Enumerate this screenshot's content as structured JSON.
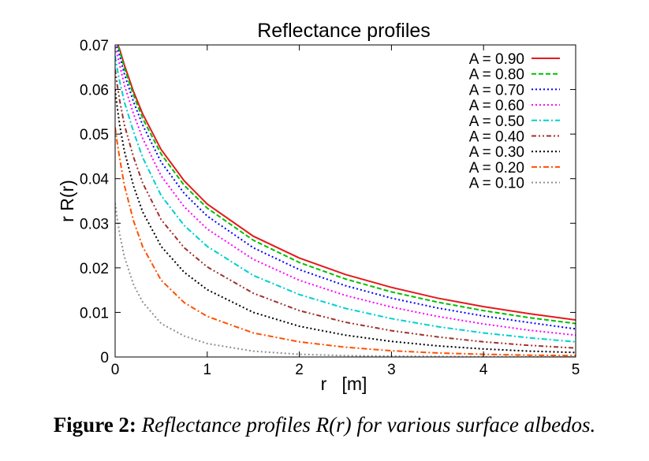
{
  "figure": {
    "caption_label": "Figure 2:",
    "caption_text": "Reflectance profiles R(r) for various surface albedos."
  },
  "chart_data": {
    "type": "line",
    "title": "Reflectance profiles",
    "xlabel": "r   [m]",
    "ylabel": "r R(r)",
    "xlim": [
      0,
      5
    ],
    "ylim": [
      0,
      0.07
    ],
    "x_ticks": [
      "0",
      "1",
      "2",
      "3",
      "4",
      "5"
    ],
    "y_ticks": [
      "0",
      "0.01",
      "0.02",
      "0.03",
      "0.04",
      "0.05",
      "0.06",
      "0.07"
    ],
    "grid": false,
    "legend_position": "top-right",
    "x": [
      0,
      0.02,
      0.05,
      0.1,
      0.2,
      0.3,
      0.5,
      0.75,
      1,
      1.5,
      2,
      2.5,
      3,
      3.5,
      4,
      4.5,
      5
    ],
    "series": [
      {
        "name": "A = 0.90",
        "color": "#e41a1c",
        "dash": "solid",
        "values": [
          0.071,
          0.0705,
          0.069,
          0.0655,
          0.0595,
          0.0545,
          0.0465,
          0.0395,
          0.0343,
          0.0271,
          0.0222,
          0.0185,
          0.0156,
          0.0132,
          0.0113,
          0.0097,
          0.0083
        ]
      },
      {
        "name": "A = 0.80",
        "color": "#00c000",
        "dash": "dash",
        "values": [
          0.071,
          0.0703,
          0.0686,
          0.0648,
          0.0587,
          0.0535,
          0.0455,
          0.0385,
          0.0334,
          0.0262,
          0.0212,
          0.0175,
          0.0146,
          0.0123,
          0.0104,
          0.0088,
          0.0075
        ]
      },
      {
        "name": "A = 0.70",
        "color": "#0000ff",
        "dash": "dot",
        "values": [
          0.0705,
          0.0695,
          0.0675,
          0.0635,
          0.0572,
          0.052,
          0.0437,
          0.0367,
          0.0316,
          0.0245,
          0.0196,
          0.016,
          0.0132,
          0.011,
          0.0092,
          0.0077,
          0.0063
        ]
      },
      {
        "name": "A = 0.60",
        "color": "#ff00ff",
        "dash": "dot",
        "values": [
          0.0695,
          0.068,
          0.0655,
          0.061,
          0.0545,
          0.049,
          0.0406,
          0.0337,
          0.0287,
          0.0219,
          0.0172,
          0.0138,
          0.0112,
          0.0091,
          0.0074,
          0.006,
          0.0049
        ]
      },
      {
        "name": "A = 0.50",
        "color": "#00d0d0",
        "dash": "dashdot",
        "values": [
          0.0675,
          0.065,
          0.0618,
          0.0572,
          0.0505,
          0.0447,
          0.0362,
          0.0295,
          0.0248,
          0.0183,
          0.014,
          0.0109,
          0.0086,
          0.0068,
          0.0054,
          0.0043,
          0.0034
        ]
      },
      {
        "name": "A = 0.40",
        "color": "#a0302c",
        "dash": "dashdotdot",
        "values": [
          0.0645,
          0.0615,
          0.0575,
          0.0521,
          0.0448,
          0.039,
          0.0308,
          0.0245,
          0.0202,
          0.0143,
          0.0104,
          0.0078,
          0.0059,
          0.0045,
          0.0034,
          0.0026,
          0.002
        ]
      },
      {
        "name": "A = 0.30",
        "color": "#000000",
        "dash": "dot",
        "values": [
          0.06,
          0.0565,
          0.052,
          0.0462,
          0.0383,
          0.0325,
          0.0248,
          0.019,
          0.0151,
          0.01,
          0.0069,
          0.0049,
          0.0035,
          0.0025,
          0.0018,
          0.0013,
          0.001
        ]
      },
      {
        "name": "A = 0.20",
        "color": "#ff5000",
        "dash": "dashdot",
        "values": [
          0.0515,
          0.0485,
          0.0445,
          0.0385,
          0.0305,
          0.0247,
          0.0172,
          0.0122,
          0.0091,
          0.0054,
          0.0034,
          0.0022,
          0.0014,
          0.0009,
          0.0006,
          0.0004,
          0.0003
        ]
      },
      {
        "name": "A = 0.10",
        "color": "#909090",
        "dash": "dot",
        "values": [
          0.0345,
          0.0315,
          0.0275,
          0.0225,
          0.0162,
          0.0123,
          0.0075,
          0.0047,
          0.003,
          0.0013,
          0.0006,
          0.0003,
          0.0002,
          0.0001,
          5e-05,
          3e-05,
          2e-05
        ]
      }
    ]
  }
}
